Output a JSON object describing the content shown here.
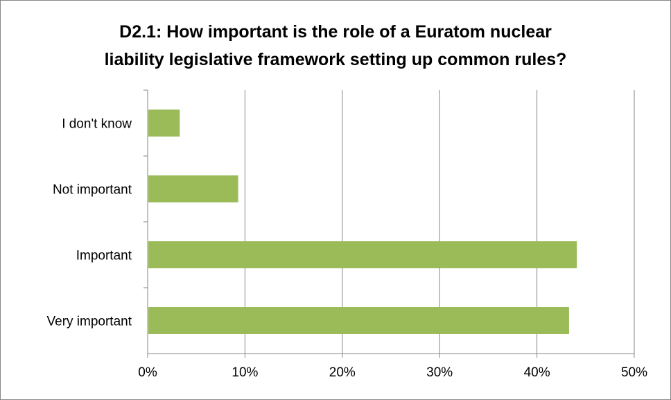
{
  "chart_data": {
    "type": "bar",
    "orientation": "horizontal",
    "title_lines": [
      "D2.1: How important is the role of a Euratom nuclear",
      "liability legislative framework setting up common rules?"
    ],
    "categories": [
      "I don't know",
      "Not important",
      "Important",
      "Very important"
    ],
    "values": [
      3.3,
      9.3,
      44.1,
      43.3
    ],
    "unit": "%",
    "xlim": [
      0,
      50
    ],
    "ticks": [
      0,
      10,
      20,
      30,
      40,
      50
    ],
    "tick_labels": [
      "0%",
      "10%",
      "20%",
      "30%",
      "40%",
      "50%"
    ],
    "bar_color": "#9bbb59",
    "gridlines": "vertical",
    "legend": "none"
  }
}
